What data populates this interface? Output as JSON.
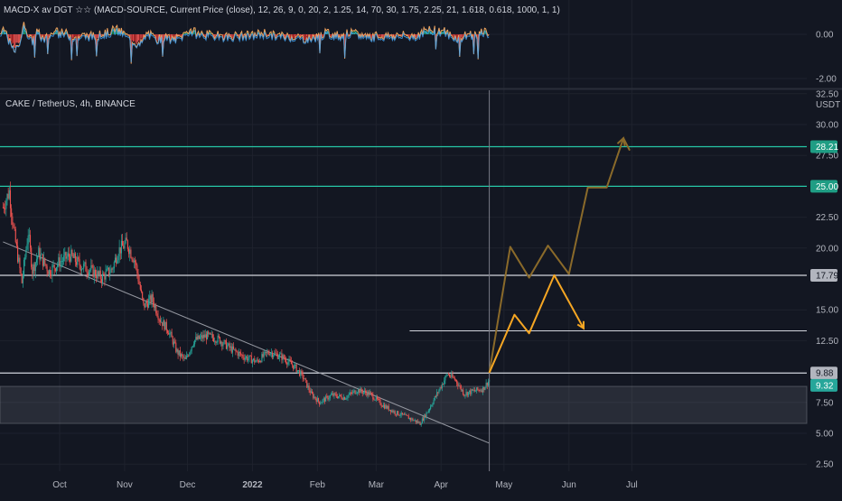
{
  "indicator": {
    "title": "MACD-X av DGT ☆☆ (MACD-SOURCE, Current Price (close), 12, 26, 9, 0, 20, 2, 1.25, 14, 70, 30, 1.75, 2.25, 21, 1.618, 0.618, 1000, 1, 1)",
    "ticks": [
      "0.00",
      "-2.00"
    ],
    "tick_values": [
      0,
      -2
    ],
    "ylim": [
      -2.6,
      0.9
    ]
  },
  "symbol": {
    "title": "CAKE / TetherUS, 4h, BINANCE",
    "currency": "USDT"
  },
  "chart_data": {
    "type": "candlestick",
    "title": "CAKE / TetherUS, 4h, BINANCE",
    "ylabel": "USDT",
    "ylim": [
      1.55,
      32.1
    ],
    "y_ticks": [
      "32.50",
      "30.00",
      "27.50",
      "25.00",
      "22.50",
      "20.00",
      "15.00",
      "12.50",
      "7.50",
      "5.00",
      "2.50"
    ],
    "y_tick_values": [
      32.5,
      30,
      27.5,
      25,
      22.5,
      20,
      15,
      12.5,
      7.5,
      5,
      2.5
    ],
    "x_ticks": [
      "Oct",
      "Nov",
      "Dec",
      "2022",
      "Feb",
      "Mar",
      "Apr",
      "May",
      "Jun",
      "Jul"
    ],
    "x_tick_days": [
      0,
      31,
      61,
      92,
      123,
      151,
      182,
      212,
      243,
      273
    ],
    "x_start_day": -27,
    "price_path": [
      [
        -27,
        23.3
      ],
      [
        -24,
        24.6
      ],
      [
        -22,
        21.5
      ],
      [
        -18,
        17.2
      ],
      [
        -15,
        21.3
      ],
      [
        -13,
        18.2
      ],
      [
        -10,
        19.6
      ],
      [
        -5,
        18.1
      ],
      [
        0,
        18.9
      ],
      [
        5,
        19.4
      ],
      [
        10,
        18.6
      ],
      [
        15,
        18.2
      ],
      [
        20,
        17.6
      ],
      [
        25,
        18.3
      ],
      [
        28,
        19.8
      ],
      [
        32,
        20.4
      ],
      [
        36,
        18.9
      ],
      [
        40,
        15.3
      ],
      [
        44,
        15.9
      ],
      [
        48,
        14.2
      ],
      [
        52,
        13.3
      ],
      [
        56,
        11.6
      ],
      [
        60,
        10.9
      ],
      [
        64,
        12.5
      ],
      [
        70,
        12.9
      ],
      [
        76,
        12.6
      ],
      [
        82,
        11.8
      ],
      [
        88,
        11.2
      ],
      [
        94,
        10.8
      ],
      [
        100,
        11.6
      ],
      [
        106,
        11.2
      ],
      [
        112,
        10.4
      ],
      [
        116,
        9.6
      ],
      [
        120,
        8.2
      ],
      [
        124,
        7.5
      ],
      [
        130,
        8.1
      ],
      [
        136,
        7.9
      ],
      [
        142,
        8.5
      ],
      [
        148,
        8.2
      ],
      [
        154,
        7.3
      ],
      [
        160,
        6.7
      ],
      [
        166,
        6.3
      ],
      [
        172,
        5.8
      ],
      [
        176,
        6.9
      ],
      [
        181,
        8.5
      ],
      [
        185,
        9.8
      ],
      [
        189,
        9.3
      ],
      [
        193,
        8.2
      ],
      [
        197,
        8.4
      ],
      [
        202,
        8.6
      ],
      [
        205,
        9.32
      ]
    ],
    "horizontal_levels": [
      {
        "value": 28.21,
        "color": "#26c6a6",
        "label": "28.21"
      },
      {
        "value": 25.0,
        "color": "#26c6a6",
        "label": "25.00"
      },
      {
        "value": 17.79,
        "color": "#d1d4dc",
        "label": "17.79"
      },
      {
        "value": 9.88,
        "color": "#d1d4dc",
        "label": "9.88"
      }
    ],
    "current_price": {
      "value": 9.32,
      "label": "9.32"
    },
    "short_level": {
      "value": 13.3,
      "from_day": 167
    },
    "support_zone": [
      5.8,
      8.8
    ],
    "trendline": [
      [
        -27,
        20.5
      ],
      [
        205,
        4.2
      ]
    ],
    "cursor_day": 205,
    "projection_light": [
      [
        205,
        9.9
      ],
      [
        217,
        14.6
      ],
      [
        224,
        13.1
      ],
      [
        236,
        17.8
      ],
      [
        250,
        13.5
      ]
    ],
    "projection_dark": [
      [
        205,
        9.9
      ],
      [
        215,
        20.1
      ],
      [
        224,
        17.6
      ],
      [
        233,
        20.2
      ],
      [
        243,
        17.9
      ],
      [
        252,
        24.9
      ],
      [
        261,
        24.9
      ],
      [
        269,
        28.9
      ],
      [
        272,
        27.9
      ]
    ],
    "colors": {
      "up": "#26a69a",
      "down": "#ef5350",
      "level_teal": "#26c6a6",
      "level_white": "#d1d4dc",
      "projection_light": "#f5a623",
      "projection_dark": "#8a6a2a"
    }
  }
}
